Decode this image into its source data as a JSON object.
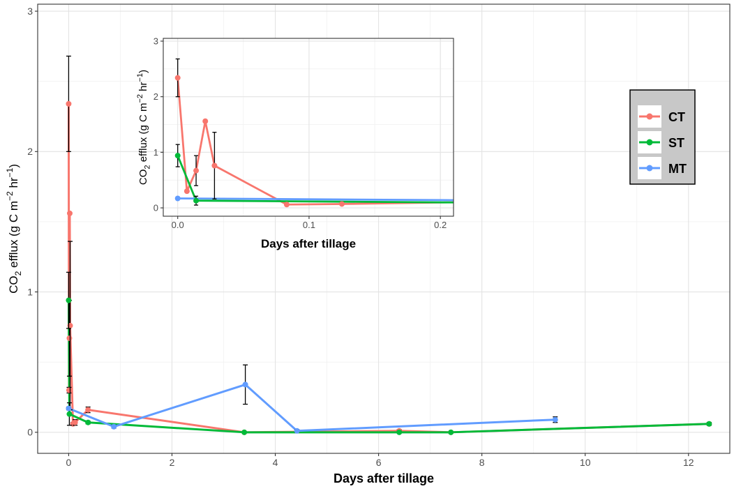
{
  "chart_data": [
    {
      "id": "main",
      "type": "line",
      "xlabel": "Days after tillage",
      "ylabel_parts": {
        "a": "CO",
        "sub": "2",
        "b": " efflux (g C m",
        "sup1": "−2",
        "c": " hr",
        "sup2": "−1",
        "d": ")"
      },
      "xlim": [
        -0.6,
        12.8
      ],
      "ylim": [
        -0.15,
        3.05
      ],
      "xticks": [
        0,
        2,
        4,
        6,
        8,
        10,
        12
      ],
      "yticks": [
        0,
        1,
        2,
        3
      ],
      "grid": true,
      "series": [
        {
          "name": "CT",
          "color": "#F8766D",
          "points": [
            {
              "x": 0.0,
              "y": 2.34,
              "lo": 2.0,
              "hi": 2.68
            },
            {
              "x": 0.007,
              "y": 0.3,
              "lo": 0.28,
              "hi": 0.32
            },
            {
              "x": 0.014,
              "y": 0.67,
              "lo": 0.4,
              "hi": 0.94
            },
            {
              "x": 0.021,
              "y": 1.56,
              "lo": 1.56,
              "hi": 1.56
            },
            {
              "x": 0.028,
              "y": 0.76,
              "lo": 0.16,
              "hi": 1.36
            },
            {
              "x": 0.083,
              "y": 0.06,
              "lo": 0.05,
              "hi": 0.07
            },
            {
              "x": 0.125,
              "y": 0.07,
              "lo": 0.05,
              "hi": 0.09
            },
            {
              "x": 0.375,
              "y": 0.16,
              "lo": 0.14,
              "hi": 0.18
            },
            {
              "x": 3.4,
              "y": 0.0,
              "lo": 0.0,
              "hi": 0.0
            },
            {
              "x": 6.4,
              "y": 0.01,
              "lo": 0.0,
              "hi": 0.02
            },
            {
              "x": 7.4,
              "y": 0.0,
              "lo": 0.0,
              "hi": 0.0
            },
            {
              "x": 12.4,
              "y": 0.06,
              "lo": 0.05,
              "hi": 0.07
            }
          ]
        },
        {
          "name": "ST",
          "color": "#00BA38",
          "points": [
            {
              "x": 0.0,
              "y": 0.94,
              "lo": 0.74,
              "hi": 1.14
            },
            {
              "x": 0.014,
              "y": 0.13,
              "lo": 0.05,
              "hi": 0.21
            },
            {
              "x": 0.375,
              "y": 0.07,
              "lo": 0.06,
              "hi": 0.08
            },
            {
              "x": 3.4,
              "y": 0.0,
              "lo": 0.0,
              "hi": 0.0
            },
            {
              "x": 6.4,
              "y": 0.0,
              "lo": 0.0,
              "hi": 0.01
            },
            {
              "x": 7.4,
              "y": 0.0,
              "lo": 0.0,
              "hi": 0.0
            },
            {
              "x": 12.4,
              "y": 0.06,
              "lo": 0.05,
              "hi": 0.07
            }
          ]
        },
        {
          "name": "MT",
          "color": "#619CFF",
          "points": [
            {
              "x": 0.0,
              "y": 0.17,
              "lo": 0.16,
              "hi": 0.18
            },
            {
              "x": 0.875,
              "y": 0.04,
              "lo": 0.03,
              "hi": 0.05
            },
            {
              "x": 3.42,
              "y": 0.34,
              "lo": 0.2,
              "hi": 0.48
            },
            {
              "x": 4.42,
              "y": 0.01,
              "lo": 0.0,
              "hi": 0.02
            },
            {
              "x": 9.42,
              "y": 0.09,
              "lo": 0.07,
              "hi": 0.11
            }
          ]
        }
      ]
    },
    {
      "id": "inset",
      "type": "line",
      "xlabel": "Days after tillage",
      "ylabel_parts": {
        "a": "CO",
        "sub": "2",
        "b": " efflux (g C m",
        "sup1": "−2",
        "c": " hr",
        "sup2": "−1",
        "d": ")"
      },
      "xlim": [
        -0.011,
        0.21
      ],
      "ylim": [
        -0.15,
        3.05
      ],
      "xticks": [
        0.0,
        0.1,
        0.2
      ],
      "xtick_labels": [
        "0.0",
        "0.1",
        "0.2"
      ],
      "yticks": [
        0,
        1,
        2,
        3
      ],
      "grid": true
    }
  ],
  "legend": {
    "items": [
      {
        "label": "CT",
        "color": "#F8766D"
      },
      {
        "label": "ST",
        "color": "#00BA38"
      },
      {
        "label": "MT",
        "color": "#619CFF"
      }
    ],
    "background": "#C8C8C8"
  }
}
